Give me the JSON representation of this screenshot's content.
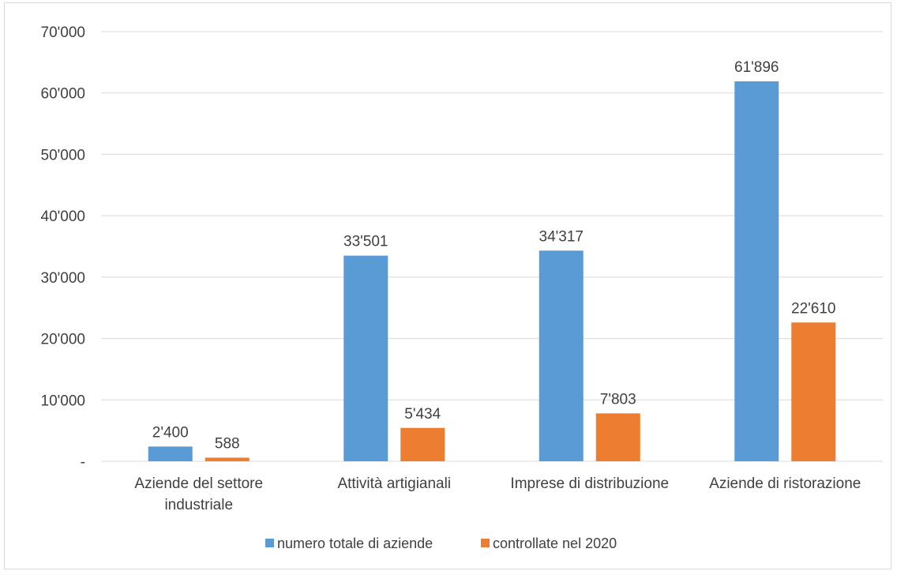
{
  "chart_data": {
    "type": "bar",
    "categories": [
      [
        "Aziende del settore",
        "industriale"
      ],
      [
        "Attività artigianali"
      ],
      [
        "Imprese di distribuzione"
      ],
      [
        "Aziende di ristorazione"
      ]
    ],
    "series": [
      {
        "name": "numero totale di aziende",
        "color": "#5b9bd5",
        "values": [
          2400,
          33501,
          34317,
          61896
        ],
        "labels": [
          "2'400",
          "33'501",
          "34'317",
          "61'896"
        ]
      },
      {
        "name": "controllate nel 2020",
        "color": "#ed7d31",
        "values": [
          588,
          5434,
          7803,
          22610
        ],
        "labels": [
          "588",
          "5'434",
          "7'803",
          "22'610"
        ]
      }
    ],
    "ylim": [
      0,
      70000
    ],
    "yticks": [
      0,
      10000,
      20000,
      30000,
      40000,
      50000,
      60000,
      70000
    ],
    "ytick_labels": [
      "-",
      "10'000",
      "20'000",
      "30'000",
      "40'000",
      "50'000",
      "60'000",
      "70'000"
    ],
    "grid": true,
    "legend": "bottom",
    "title": "",
    "xlabel": "",
    "ylabel": ""
  }
}
